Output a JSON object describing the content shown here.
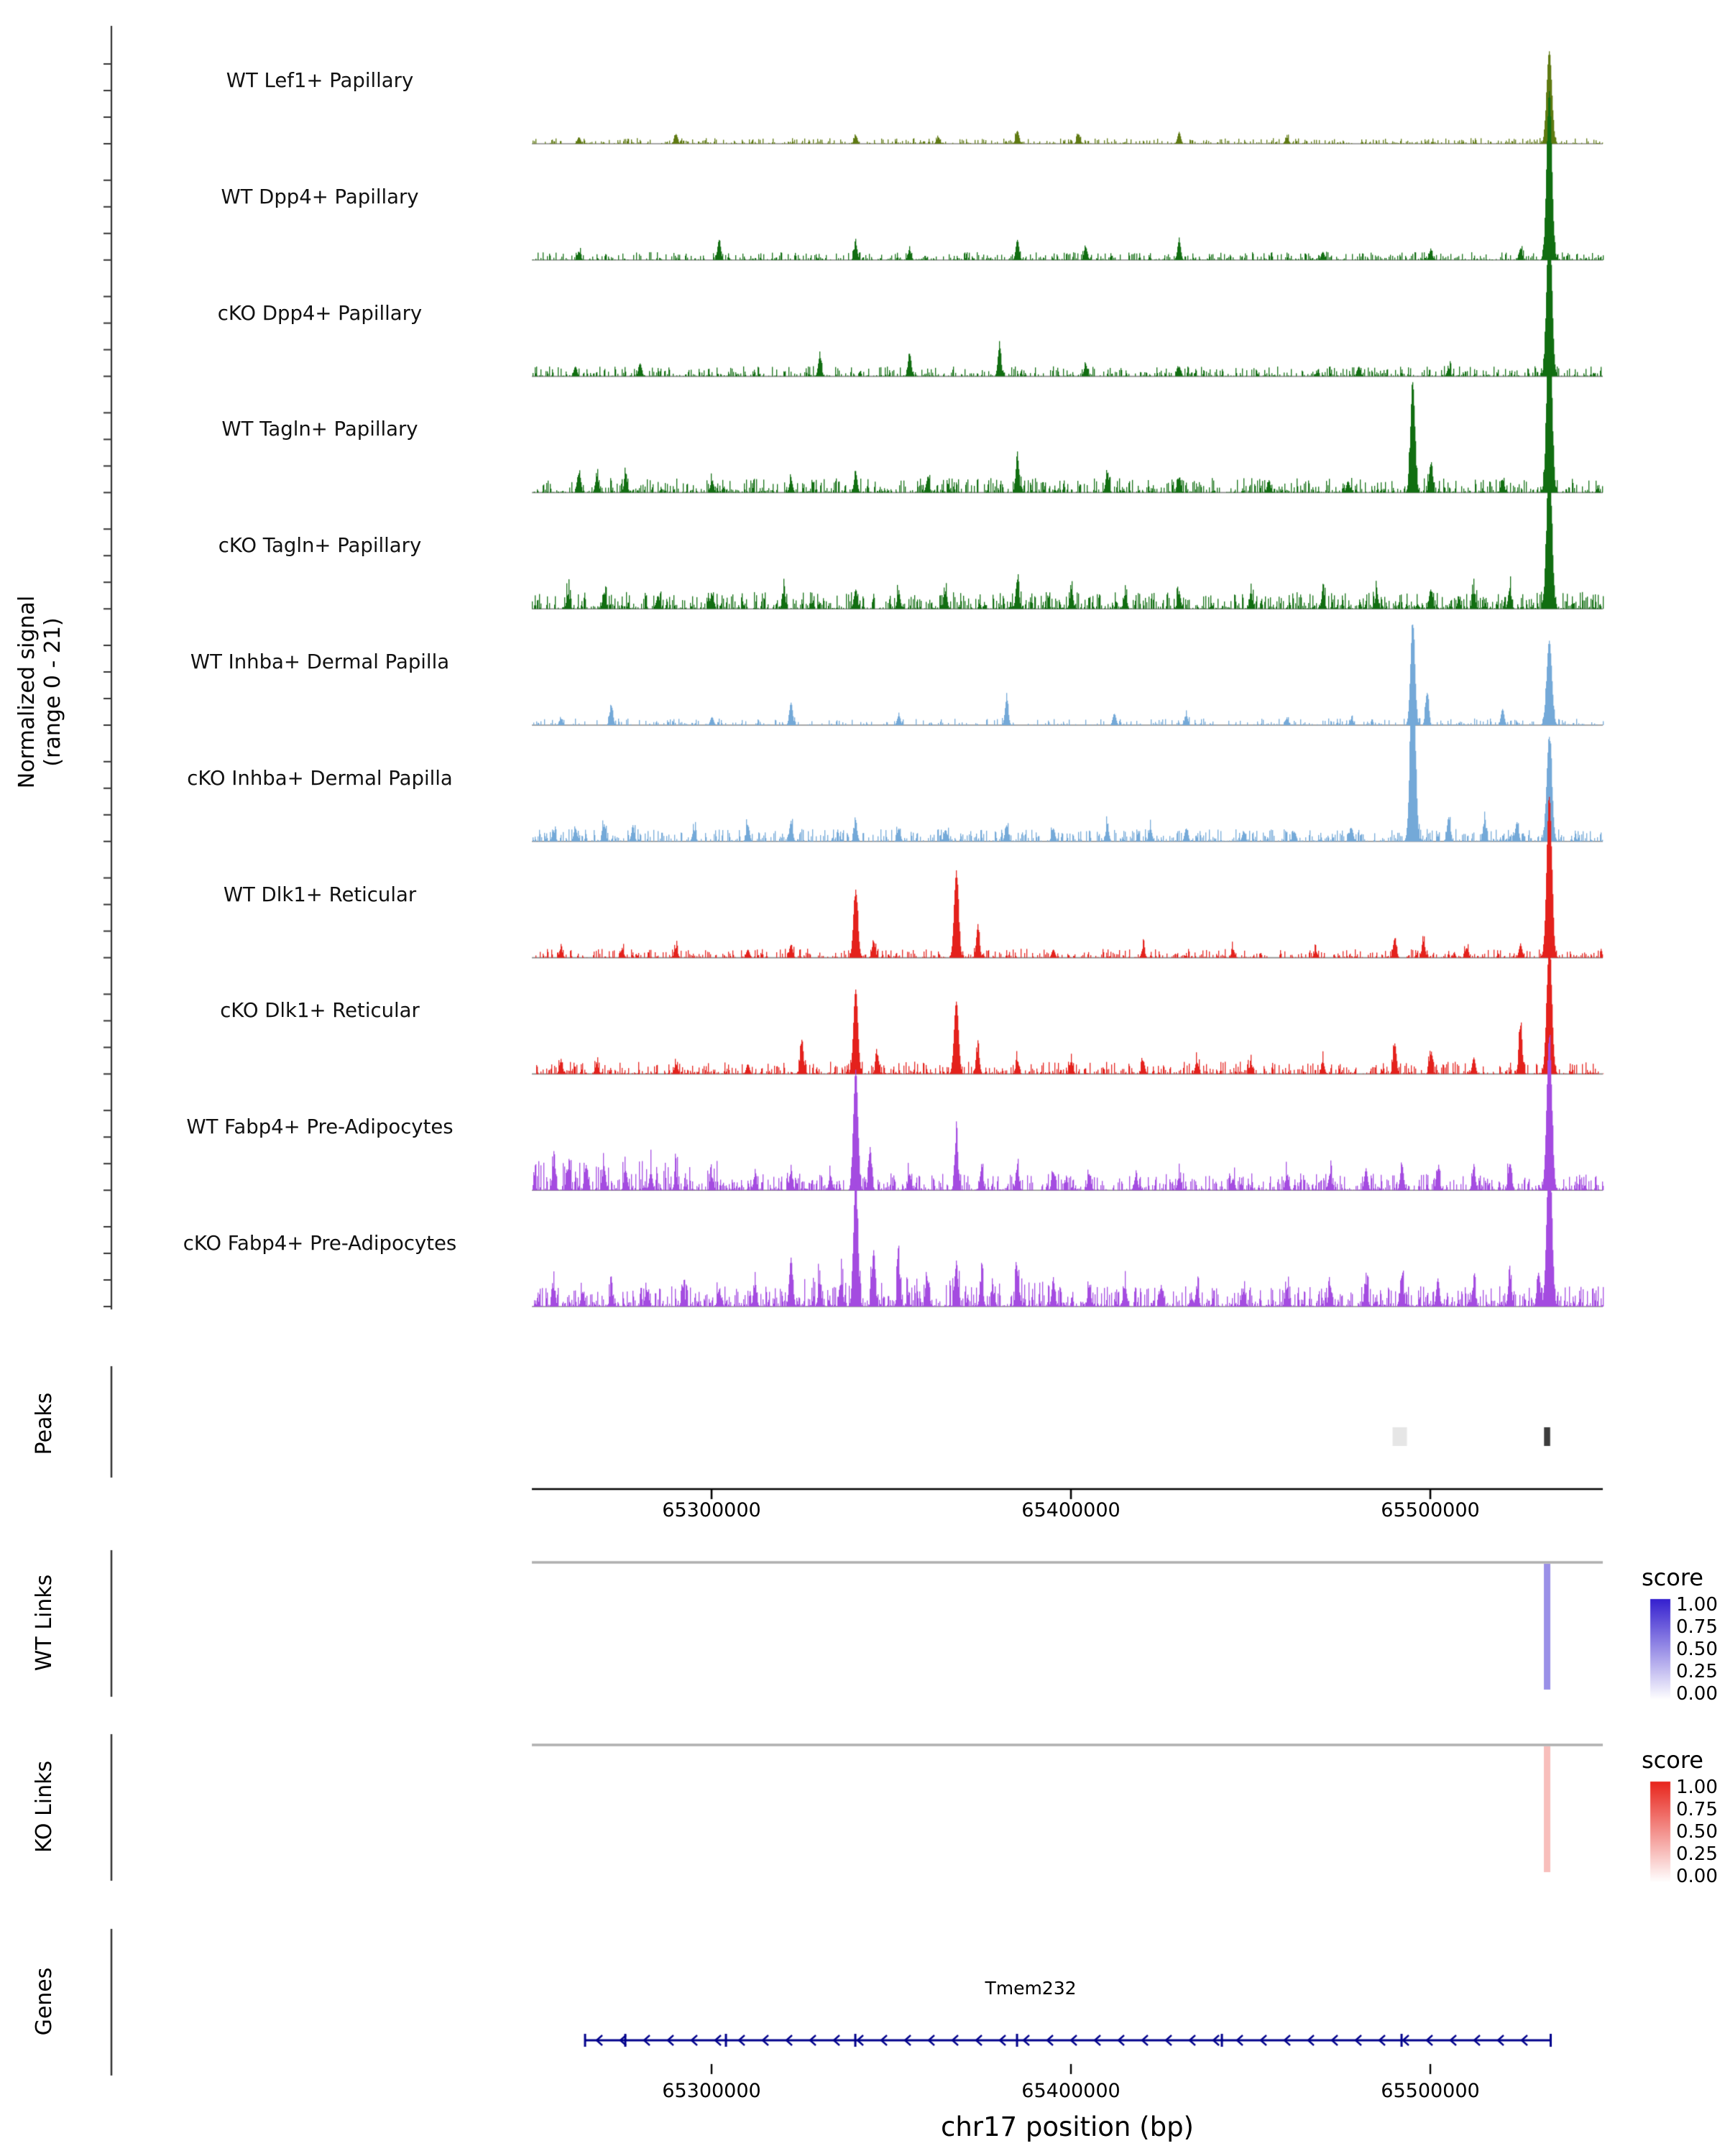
{
  "chart_data": {
    "type": "area",
    "subtype": "genome-browser-coverage-tracks",
    "region": {
      "chrom": "chr17",
      "bp_start": 65250000,
      "bp_end": 65548000
    },
    "signal": {
      "axis_label": "Normalized signal\n(range 0 - 21)",
      "ymin": 0,
      "ymax": 21,
      "tracks": [
        {
          "label": "WT Lef1+ Papillary",
          "color": "#5f7a12",
          "noise": {
            "amp": 0.5,
            "density": 0.55
          },
          "peaks": [
            [
              65263000,
              0.8
            ],
            [
              65290000,
              1.2
            ],
            [
              65340000,
              1.0
            ],
            [
              65363000,
              0.8
            ],
            [
              65385000,
              1.6
            ],
            [
              65402000,
              1.2
            ],
            [
              65430000,
              1.4
            ],
            [
              65460000,
              0.8
            ],
            [
              65533000,
              11.5,
              3.5
            ]
          ]
        },
        {
          "label": "WT Dpp4+ Papillary",
          "color": "#116e11",
          "noise": {
            "amp": 0.7,
            "density": 0.6
          },
          "peaks": [
            [
              65263000,
              1.0
            ],
            [
              65302000,
              2.5
            ],
            [
              65340000,
              2.0
            ],
            [
              65355000,
              1.2
            ],
            [
              65385000,
              2.5
            ],
            [
              65404000,
              1.6
            ],
            [
              65430000,
              2.4
            ],
            [
              65470000,
              1.0
            ],
            [
              65500000,
              1.2
            ],
            [
              65525000,
              1.4
            ],
            [
              65533000,
              21,
              3.5
            ]
          ]
        },
        {
          "label": "cKO Dpp4+ Papillary",
          "color": "#116e11",
          "noise": {
            "amp": 0.9,
            "density": 0.6
          },
          "peaks": [
            [
              65262000,
              1.2
            ],
            [
              65280000,
              1.6
            ],
            [
              65330000,
              2.4
            ],
            [
              65355000,
              2.8
            ],
            [
              65380000,
              3.6
            ],
            [
              65404000,
              1.4
            ],
            [
              65430000,
              1.2
            ],
            [
              65480000,
              1.2
            ],
            [
              65505000,
              1.0
            ],
            [
              65533000,
              20,
              3.5
            ]
          ]
        },
        {
          "label": "WT Tagln+ Papillary",
          "color": "#116e11",
          "noise": {
            "amp": 1.3,
            "density": 0.7
          },
          "peaks": [
            [
              65263000,
              2.4
            ],
            [
              65268000,
              2.0
            ],
            [
              65276000,
              2.0
            ],
            [
              65300000,
              1.4
            ],
            [
              65322000,
              1.6
            ],
            [
              65340000,
              2.4
            ],
            [
              65360000,
              1.6
            ],
            [
              65385000,
              4.4
            ],
            [
              65410000,
              2.4
            ],
            [
              65430000,
              1.6
            ],
            [
              65455000,
              1.4
            ],
            [
              65477000,
              1.4
            ],
            [
              65495000,
              13.5,
              3
            ],
            [
              65500000,
              3.5
            ],
            [
              65520000,
              1.6
            ],
            [
              65533000,
              21,
              3.5
            ]
          ]
        },
        {
          "label": "cKO Tagln+ Papillary",
          "color": "#116e11",
          "noise": {
            "amp": 1.5,
            "density": 0.8
          },
          "peaks": [
            [
              65260000,
              1.8
            ],
            [
              65270000,
              2.0
            ],
            [
              65285000,
              1.6
            ],
            [
              65300000,
              1.8
            ],
            [
              65320000,
              2.0
            ],
            [
              65340000,
              2.4
            ],
            [
              65352000,
              1.8
            ],
            [
              65365000,
              2.0
            ],
            [
              65385000,
              3.6
            ],
            [
              65400000,
              2.0
            ],
            [
              65415000,
              1.8
            ],
            [
              65430000,
              2.0
            ],
            [
              65450000,
              1.6
            ],
            [
              65470000,
              1.8
            ],
            [
              65485000,
              1.8
            ],
            [
              65500000,
              2.4
            ],
            [
              65512000,
              2.0
            ],
            [
              65522000,
              2.4
            ],
            [
              65533000,
              18.5,
              3.5
            ]
          ]
        },
        {
          "label": "WT Inhba+ Dermal Papilla",
          "color": "#74a9d8",
          "noise": {
            "amp": 0.6,
            "density": 0.45
          },
          "peaks": [
            [
              65258000,
              0.8
            ],
            [
              65272000,
              2.4
            ],
            [
              65300000,
              1.0
            ],
            [
              65322000,
              2.8
            ],
            [
              65352000,
              1.2
            ],
            [
              65382000,
              3.2
            ],
            [
              65412000,
              1.4
            ],
            [
              65432000,
              1.2
            ],
            [
              65460000,
              0.8
            ],
            [
              65478000,
              0.8
            ],
            [
              65495000,
              12.5,
              3
            ],
            [
              65499000,
              4.0
            ],
            [
              65520000,
              2.0
            ],
            [
              65533000,
              10.5,
              3.5
            ]
          ]
        },
        {
          "label": "cKO Inhba+ Dermal Papilla",
          "color": "#74a9d8",
          "noise": {
            "amp": 1.1,
            "density": 0.65
          },
          "peaks": [
            [
              65256000,
              1.2
            ],
            [
              65262000,
              1.6
            ],
            [
              65270000,
              2.0
            ],
            [
              65278000,
              1.6
            ],
            [
              65295000,
              1.4
            ],
            [
              65310000,
              2.0
            ],
            [
              65322000,
              2.4
            ],
            [
              65340000,
              2.0
            ],
            [
              65352000,
              1.6
            ],
            [
              65365000,
              1.4
            ],
            [
              65382000,
              2.0
            ],
            [
              65395000,
              1.6
            ],
            [
              65410000,
              1.8
            ],
            [
              65422000,
              1.6
            ],
            [
              65432000,
              1.6
            ],
            [
              65448000,
              1.2
            ],
            [
              65462000,
              1.2
            ],
            [
              65478000,
              1.6
            ],
            [
              65495000,
              21,
              3.5
            ],
            [
              65505000,
              3.0
            ],
            [
              65515000,
              2.4
            ],
            [
              65524000,
              2.4
            ],
            [
              65533000,
              13,
              3.5
            ]
          ]
        },
        {
          "label": "WT Dlk1+ Reticular",
          "color": "#e4211c",
          "noise": {
            "amp": 0.8,
            "density": 0.55
          },
          "peaks": [
            [
              65258000,
              1.0
            ],
            [
              65275000,
              1.0
            ],
            [
              65290000,
              1.2
            ],
            [
              65310000,
              1.0
            ],
            [
              65322000,
              1.6
            ],
            [
              65340000,
              8.0,
              3
            ],
            [
              65345000,
              2.0
            ],
            [
              65368000,
              10.5,
              3
            ],
            [
              65374000,
              3.8
            ],
            [
              65395000,
              1.0
            ],
            [
              65420000,
              1.2
            ],
            [
              65445000,
              1.0
            ],
            [
              65468000,
              0.8
            ],
            [
              65490000,
              2.4
            ],
            [
              65498000,
              2.0
            ],
            [
              65510000,
              1.2
            ],
            [
              65525000,
              1.6
            ],
            [
              65533000,
              20,
              3.5
            ]
          ]
        },
        {
          "label": "cKO Dlk1+ Reticular",
          "color": "#e4211c",
          "noise": {
            "amp": 1.1,
            "density": 0.65
          },
          "peaks": [
            [
              65258000,
              1.6
            ],
            [
              65268000,
              1.2
            ],
            [
              65290000,
              1.2
            ],
            [
              65310000,
              1.2
            ],
            [
              65325000,
              4.0
            ],
            [
              65340000,
              10.5,
              3
            ],
            [
              65346000,
              2.4
            ],
            [
              65368000,
              9.0,
              3
            ],
            [
              65374000,
              3.0
            ],
            [
              65385000,
              1.6
            ],
            [
              65400000,
              1.6
            ],
            [
              65420000,
              1.6
            ],
            [
              65435000,
              1.4
            ],
            [
              65450000,
              1.2
            ],
            [
              65470000,
              1.4
            ],
            [
              65490000,
              3.8
            ],
            [
              65500000,
              2.4
            ],
            [
              65512000,
              2.0
            ],
            [
              65525000,
              6.0
            ],
            [
              65533000,
              16,
              3.5
            ]
          ]
        },
        {
          "label": "WT Fabp4+ Pre-Adipocytes",
          "color": "#a44be0",
          "noise": {
            "amp": 1.5,
            "density": 0.75,
            "regions": [
              [
                65250000,
                65302000,
                2.6
              ]
            ]
          },
          "peaks": [
            [
              65256000,
              3.0
            ],
            [
              65260000,
              2.6
            ],
            [
              65265000,
              3.0
            ],
            [
              65270000,
              2.6
            ],
            [
              65276000,
              2.4
            ],
            [
              65283000,
              2.2
            ],
            [
              65290000,
              1.8
            ],
            [
              65300000,
              1.6
            ],
            [
              65312000,
              1.8
            ],
            [
              65322000,
              2.2
            ],
            [
              65333000,
              1.8
            ],
            [
              65340000,
              15,
              3
            ],
            [
              65344000,
              5.0
            ],
            [
              65355000,
              2.0
            ],
            [
              65368000,
              6.5
            ],
            [
              65375000,
              2.6
            ],
            [
              65385000,
              2.6
            ],
            [
              65395000,
              2.2
            ],
            [
              65405000,
              2.0
            ],
            [
              65418000,
              1.8
            ],
            [
              65430000,
              1.6
            ],
            [
              65445000,
              1.4
            ],
            [
              65460000,
              1.8
            ],
            [
              65472000,
              2.0
            ],
            [
              65482000,
              2.6
            ],
            [
              65492000,
              3.2
            ],
            [
              65502000,
              2.6
            ],
            [
              65512000,
              2.6
            ],
            [
              65522000,
              3.2
            ],
            [
              65533000,
              19,
              3.5
            ]
          ]
        },
        {
          "label": "cKO Fabp4+ Pre-Adipocytes",
          "color": "#a44be0",
          "noise": {
            "amp": 1.8,
            "density": 0.85,
            "regions": [
              [
                65325000,
                65400000,
                2.6
              ]
            ]
          },
          "peaks": [
            [
              65256000,
              2.2
            ],
            [
              65264000,
              1.8
            ],
            [
              65272000,
              1.8
            ],
            [
              65282000,
              1.8
            ],
            [
              65292000,
              2.2
            ],
            [
              65302000,
              2.0
            ],
            [
              65312000,
              2.6
            ],
            [
              65322000,
              6.0
            ],
            [
              65330000,
              2.6
            ],
            [
              65336000,
              3.0
            ],
            [
              65340000,
              15,
              3
            ],
            [
              65345000,
              7.0
            ],
            [
              65352000,
              4.2
            ],
            [
              65360000,
              3.2
            ],
            [
              65368000,
              5.2
            ],
            [
              65375000,
              3.2
            ],
            [
              65385000,
              4.2
            ],
            [
              65395000,
              3.2
            ],
            [
              65405000,
              2.6
            ],
            [
              65415000,
              2.4
            ],
            [
              65425000,
              2.4
            ],
            [
              65435000,
              2.2
            ],
            [
              65448000,
              1.8
            ],
            [
              65460000,
              2.2
            ],
            [
              65472000,
              2.6
            ],
            [
              65482000,
              3.0
            ],
            [
              65492000,
              3.8
            ],
            [
              65502000,
              3.2
            ],
            [
              65512000,
              2.6
            ],
            [
              65522000,
              3.8
            ],
            [
              65530000,
              4.2
            ],
            [
              65533000,
              19.5,
              3.5
            ]
          ]
        }
      ]
    },
    "peaks": {
      "label": "Peaks",
      "items": [
        {
          "bp": 65491500,
          "width_bp": 4000,
          "color": "#e6e6e6"
        },
        {
          "bp": 65532500,
          "width_bp": 1700,
          "color": "#3c3c3c"
        }
      ]
    },
    "axis_top": {
      "ticks": [
        65300000,
        65400000,
        65500000
      ],
      "tick_labels": [
        "65300000",
        "65400000",
        "65500000"
      ]
    },
    "wt_links": {
      "label": "WT Links",
      "links": [
        {
          "bp": 65532500,
          "score": 0.5
        }
      ],
      "legend": {
        "title": "score",
        "color_high": "#3520cf",
        "color_low": "#ffffff",
        "tick_labels": [
          "1.00",
          "0.75",
          "0.50",
          "0.25",
          "0.00"
        ]
      }
    },
    "ko_links": {
      "label": "KO Links",
      "links": [
        {
          "bp": 65532500,
          "score": 0.3
        }
      ],
      "legend": {
        "title": "score",
        "color_high": "#e8251c",
        "color_low": "#ffffff",
        "tick_labels": [
          "1.00",
          "0.75",
          "0.50",
          "0.25",
          "0.00"
        ]
      }
    },
    "genes": {
      "label": "Genes",
      "items": [
        {
          "name": "Tmem232",
          "bp_start": 65264800,
          "bp_end": 65533500,
          "strand": "-",
          "color": "#00008b",
          "exons_bp": [
            65264800,
            65276000,
            65304000,
            65340000,
            65385000,
            65442000,
            65492000,
            65533500
          ]
        }
      ]
    },
    "axis_bottom": {
      "title": "chr17 position (bp)",
      "ticks": [
        65300000,
        65400000,
        65500000
      ],
      "tick_labels": [
        "65300000",
        "65400000",
        "65500000"
      ]
    }
  }
}
